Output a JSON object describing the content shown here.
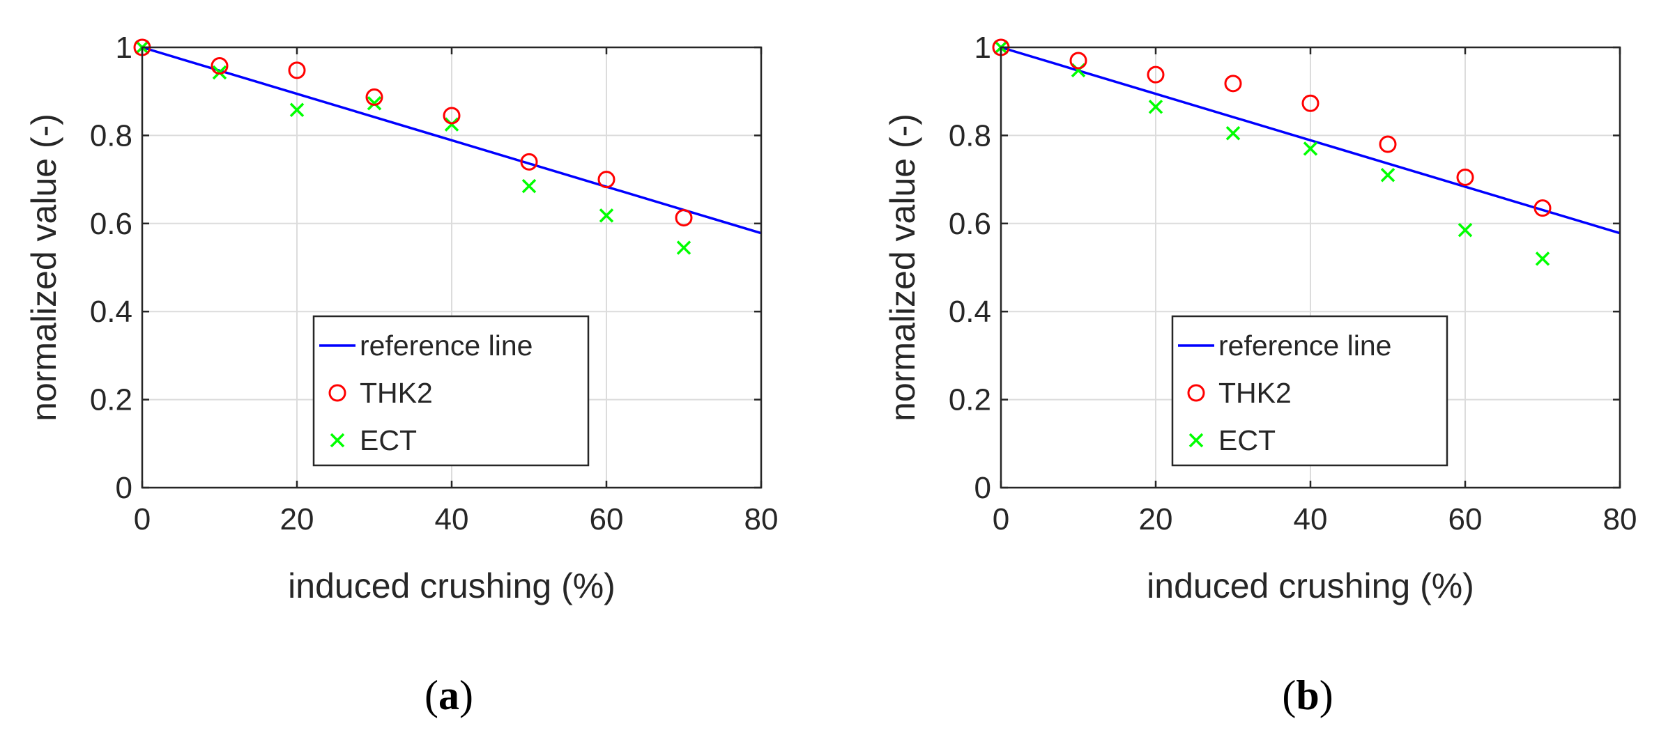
{
  "colors": {
    "reference": "#0000ff",
    "thk2": "#ff0000",
    "ect": "#00ff00",
    "grid": "#dcdcdc",
    "axis": "#262626"
  },
  "chart_data": [
    {
      "panel": "a",
      "paren_open": "(",
      "paren_close": ")",
      "type": "scatter",
      "xlabel": "induced crushing (%)",
      "ylabel": "normalized value (-)",
      "xlim": [
        0,
        80
      ],
      "ylim": [
        0,
        1
      ],
      "xticks": [
        "0",
        "20",
        "40",
        "60",
        "80"
      ],
      "yticks": [
        "0",
        "0.2",
        "0.4",
        "0.6",
        "0.8",
        "1"
      ],
      "grid": true,
      "legend_position": "bottom-center",
      "legend": [
        "reference line",
        "THK2",
        "ECT"
      ],
      "series": [
        {
          "name": "reference line",
          "kind": "line",
          "x": [
            0,
            80
          ],
          "y": [
            1.0,
            0.578
          ]
        },
        {
          "name": "THK2",
          "kind": "circle",
          "x": [
            0,
            10,
            20,
            30,
            40,
            50,
            60,
            70
          ],
          "y": [
            1.0,
            0.958,
            0.948,
            0.887,
            0.845,
            0.74,
            0.7,
            0.613
          ]
        },
        {
          "name": "ECT",
          "kind": "cross",
          "x": [
            0,
            10,
            20,
            30,
            40,
            50,
            60,
            70
          ],
          "y": [
            1.0,
            0.943,
            0.858,
            0.873,
            0.825,
            0.685,
            0.618,
            0.545
          ]
        }
      ]
    },
    {
      "panel": "b",
      "paren_open": "(",
      "paren_close": ")",
      "type": "scatter",
      "xlabel": "induced crushing (%)",
      "ylabel": "normalized value (-)",
      "xlim": [
        0,
        80
      ],
      "ylim": [
        0,
        1
      ],
      "xticks": [
        "0",
        "20",
        "40",
        "60",
        "80"
      ],
      "yticks": [
        "0",
        "0.2",
        "0.4",
        "0.6",
        "0.8",
        "1"
      ],
      "grid": true,
      "legend_position": "bottom-center",
      "legend": [
        "reference line",
        "THK2",
        "ECT"
      ],
      "series": [
        {
          "name": "reference line",
          "kind": "line",
          "x": [
            0,
            80
          ],
          "y": [
            1.0,
            0.578
          ]
        },
        {
          "name": "THK2",
          "kind": "circle",
          "x": [
            0,
            10,
            20,
            30,
            40,
            50,
            60,
            70
          ],
          "y": [
            1.0,
            0.97,
            0.938,
            0.918,
            0.873,
            0.78,
            0.705,
            0.635
          ]
        },
        {
          "name": "ECT",
          "kind": "cross",
          "x": [
            0,
            10,
            20,
            30,
            40,
            50,
            60,
            70
          ],
          "y": [
            1.0,
            0.948,
            0.865,
            0.805,
            0.77,
            0.71,
            0.585,
            0.52
          ]
        }
      ]
    }
  ]
}
